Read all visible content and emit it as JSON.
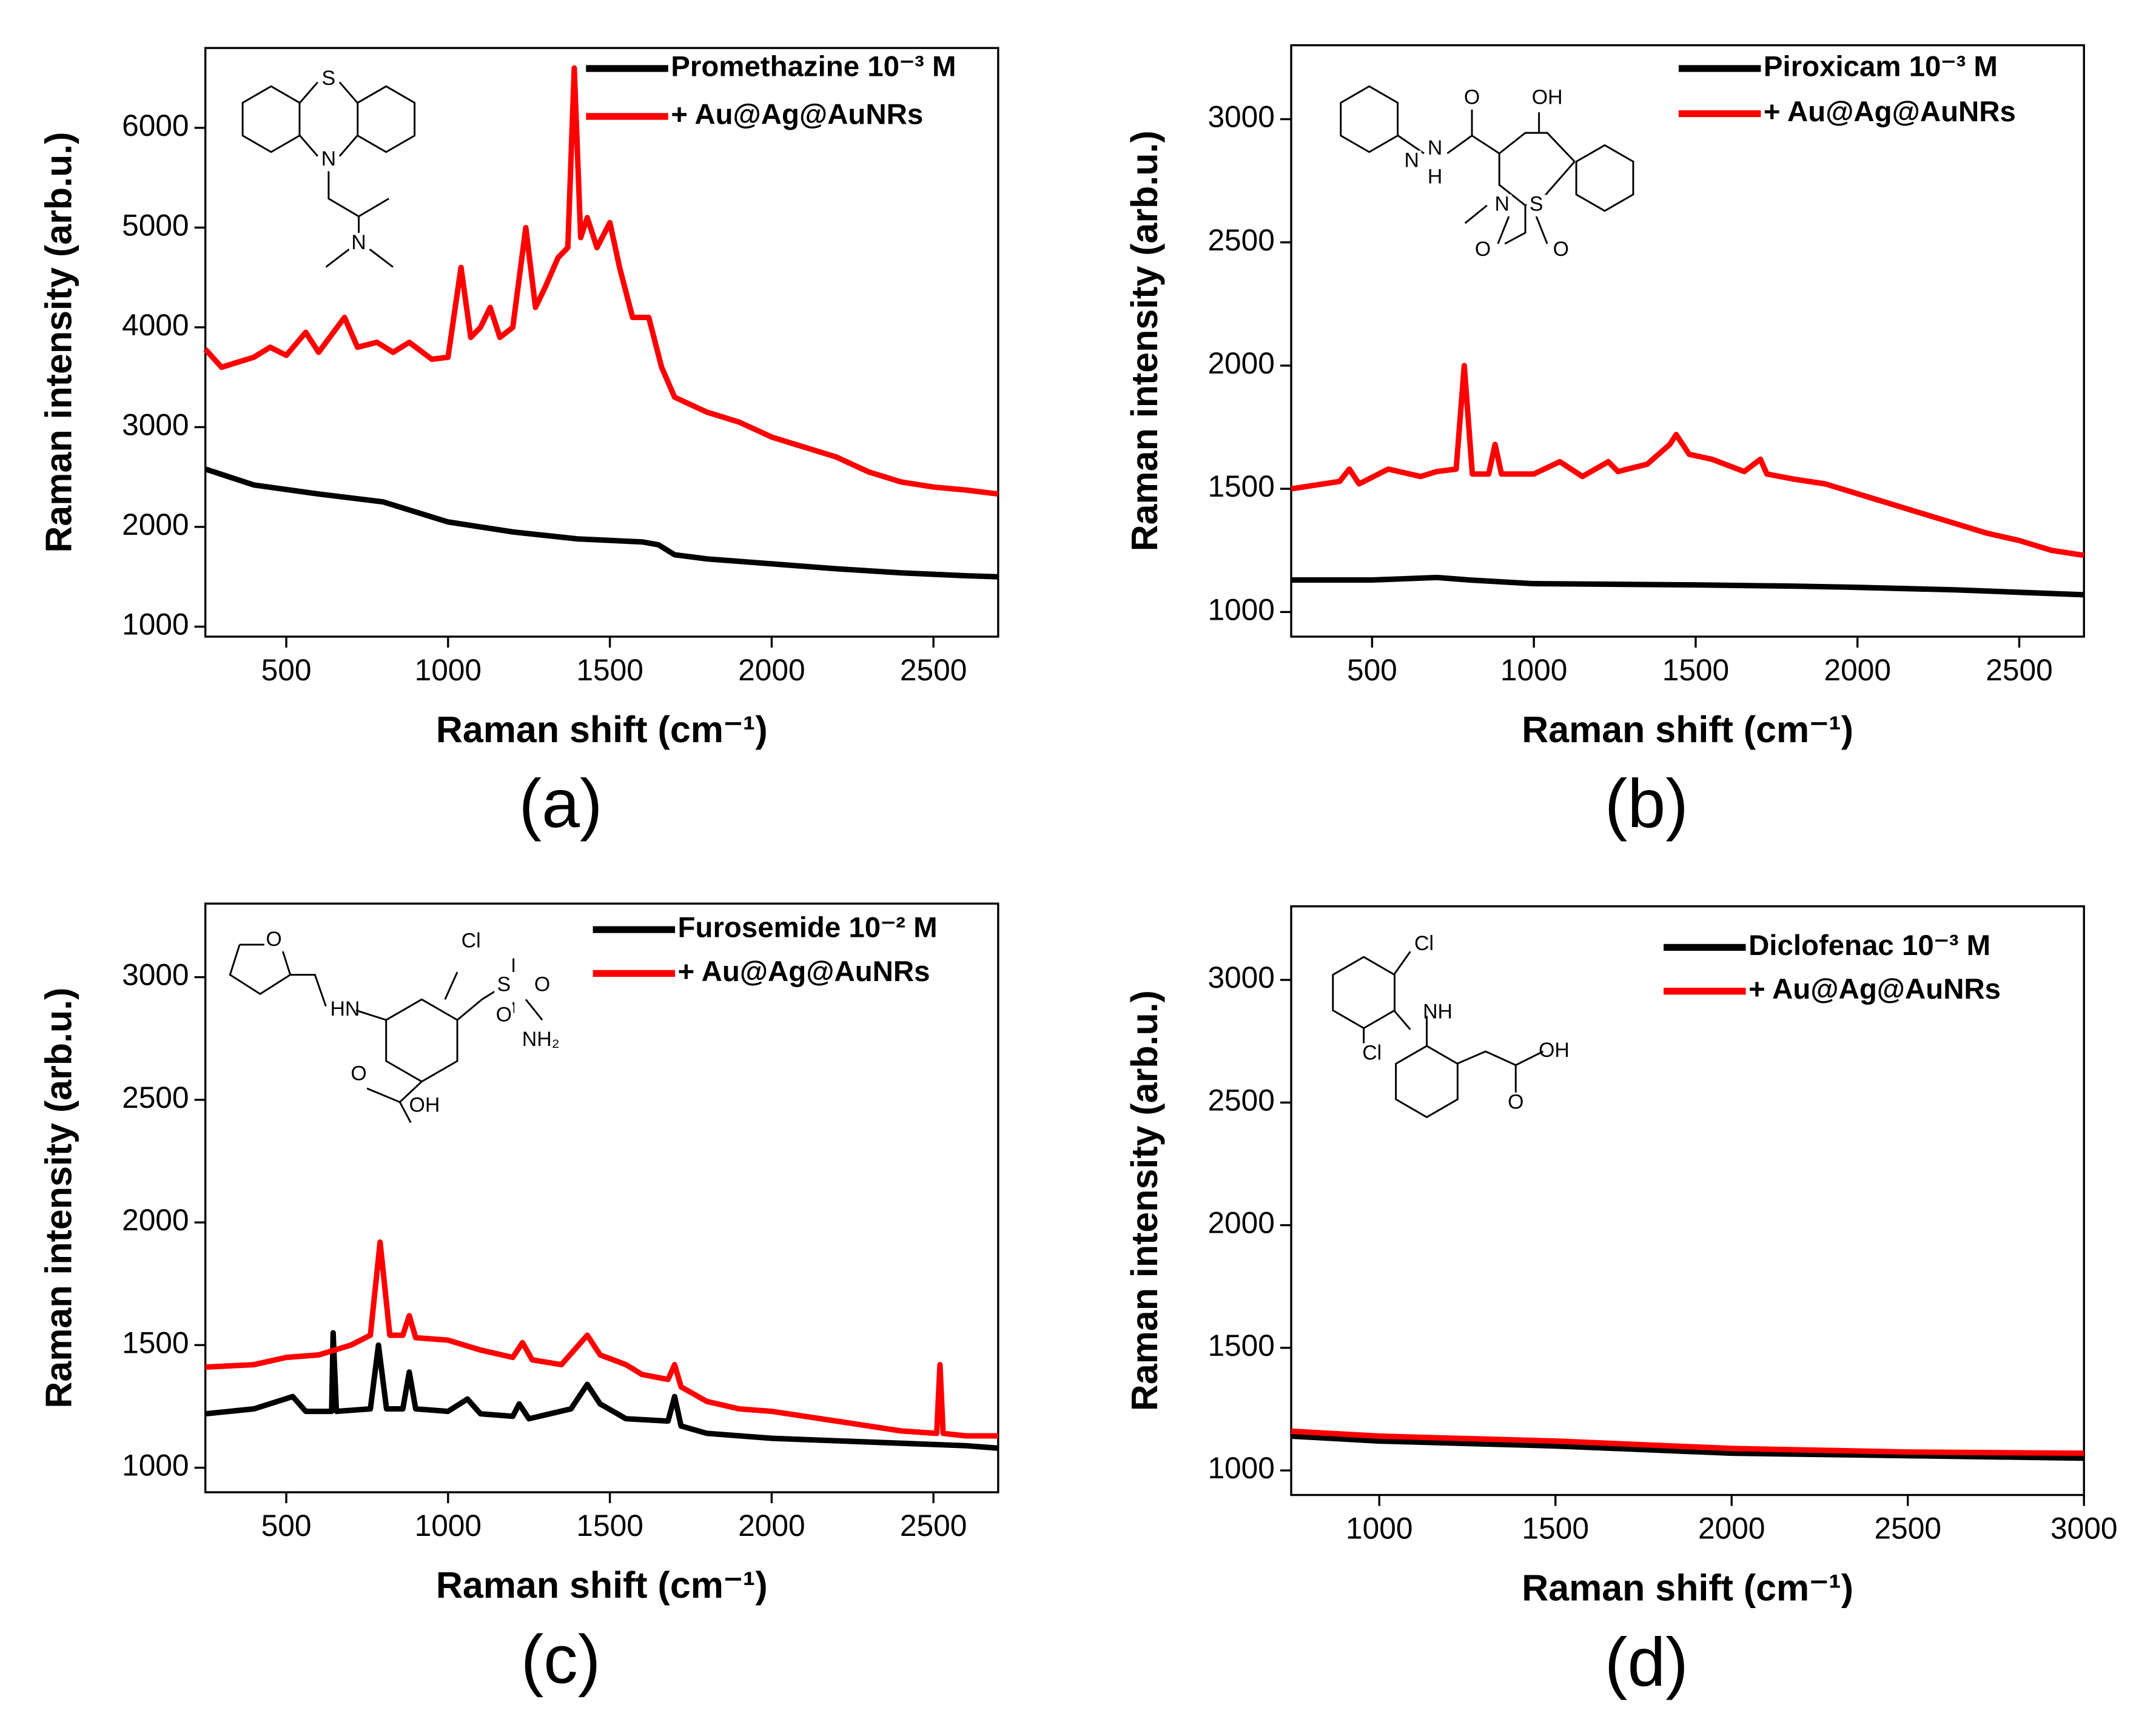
{
  "chart_data": [
    {
      "type": "line",
      "label": "(a)",
      "xlabel": "Raman shift (cm⁻¹)",
      "ylabel": "Raman intensity (arb.u.)",
      "xlim": [
        250,
        2700
      ],
      "ylim": [
        900,
        6800
      ],
      "xticks": [
        500,
        1000,
        1500,
        2000,
        2500
      ],
      "yticks": [
        1000,
        2000,
        3000,
        4000,
        5000,
        6000
      ],
      "legend": "upper right",
      "structure_labels": [
        "S",
        "N",
        "N"
      ],
      "series": [
        {
          "name": "Promethazine 10⁻³ M",
          "color": "#000000",
          "x": [
            250,
            400,
            600,
            800,
            900,
            1000,
            1200,
            1400,
            1600,
            1650,
            1700,
            1800,
            2000,
            2200,
            2400,
            2600,
            2700
          ],
          "values": [
            2580,
            2420,
            2330,
            2250,
            2150,
            2050,
            1950,
            1880,
            1850,
            1820,
            1720,
            1680,
            1630,
            1580,
            1540,
            1510,
            1500
          ]
        },
        {
          "name": "+ Au@Ag@AuNRs",
          "color": "#ff0000",
          "x": [
            250,
            300,
            400,
            450,
            500,
            560,
            600,
            680,
            720,
            780,
            830,
            880,
            950,
            1000,
            1040,
            1070,
            1100,
            1130,
            1160,
            1200,
            1240,
            1270,
            1300,
            1340,
            1370,
            1390,
            1410,
            1430,
            1460,
            1500,
            1530,
            1570,
            1620,
            1660,
            1700,
            1800,
            1900,
            2000,
            2100,
            2200,
            2300,
            2400,
            2500,
            2600,
            2700
          ],
          "values": [
            3780,
            3600,
            3700,
            3800,
            3720,
            3950,
            3750,
            4100,
            3800,
            3850,
            3750,
            3850,
            3680,
            3700,
            4600,
            3900,
            4000,
            4200,
            3900,
            4000,
            5000,
            4200,
            4400,
            4700,
            4800,
            6600,
            4900,
            5100,
            4800,
            5050,
            4600,
            4100,
            4100,
            3600,
            3300,
            3150,
            3050,
            2900,
            2800,
            2700,
            2550,
            2450,
            2400,
            2370,
            2330
          ]
        }
      ]
    },
    {
      "type": "line",
      "label": "(b)",
      "xlabel": "Raman shift (cm⁻¹)",
      "ylabel": "Raman intensity (arb.u.)",
      "xlim": [
        250,
        2700
      ],
      "ylim": [
        900,
        3300
      ],
      "xticks": [
        500,
        1000,
        1500,
        2000,
        2500
      ],
      "yticks": [
        1000,
        1500,
        2000,
        2500,
        3000
      ],
      "legend": "upper right",
      "structure_labels": [
        "N",
        "N",
        "H",
        "O",
        "OH",
        "N",
        "S",
        "O",
        "O"
      ],
      "series": [
        {
          "name": "Piroxicam 10⁻³ M",
          "color": "#000000",
          "x": [
            250,
            500,
            700,
            800,
            1000,
            1500,
            1800,
            2000,
            2300,
            2500,
            2700
          ],
          "values": [
            1130,
            1130,
            1140,
            1130,
            1115,
            1110,
            1105,
            1100,
            1090,
            1080,
            1070
          ]
        },
        {
          "name": "+ Au@Ag@AuNRs",
          "color": "#ff0000",
          "x": [
            250,
            400,
            430,
            460,
            550,
            650,
            700,
            760,
            785,
            810,
            860,
            880,
            900,
            1000,
            1080,
            1150,
            1230,
            1260,
            1350,
            1420,
            1440,
            1480,
            1550,
            1650,
            1700,
            1720,
            1800,
            1900,
            2000,
            2100,
            2200,
            2300,
            2400,
            2500,
            2600,
            2700
          ],
          "values": [
            1500,
            1530,
            1580,
            1520,
            1580,
            1550,
            1570,
            1580,
            2000,
            1560,
            1560,
            1680,
            1560,
            1560,
            1610,
            1550,
            1610,
            1570,
            1600,
            1680,
            1720,
            1640,
            1620,
            1570,
            1620,
            1560,
            1540,
            1520,
            1480,
            1440,
            1400,
            1360,
            1320,
            1290,
            1250,
            1230
          ]
        }
      ]
    },
    {
      "type": "line",
      "label": "(c)",
      "xlabel": "Raman shift (cm⁻¹)",
      "ylabel": "Raman intensity (arb.u.)",
      "xlim": [
        250,
        2700
      ],
      "ylim": [
        900,
        3300
      ],
      "xticks": [
        500,
        1000,
        1500,
        2000,
        2500
      ],
      "yticks": [
        1000,
        1500,
        2000,
        2500,
        3000
      ],
      "legend": "upper right",
      "structure_labels": [
        "O",
        "HN",
        "Cl",
        "S",
        "O",
        "O",
        "NH₂",
        "O",
        "OH"
      ],
      "series": [
        {
          "name": "Furosemide 10⁻² M",
          "color": "#000000",
          "x": [
            250,
            400,
            520,
            560,
            640,
            645,
            655,
            760,
            785,
            810,
            860,
            880,
            900,
            1000,
            1060,
            1100,
            1200,
            1220,
            1250,
            1380,
            1430,
            1470,
            1550,
            1680,
            1700,
            1720,
            1800,
            2000,
            2200,
            2400,
            2600,
            2700
          ],
          "values": [
            1220,
            1240,
            1290,
            1230,
            1230,
            1550,
            1230,
            1240,
            1500,
            1240,
            1240,
            1390,
            1240,
            1230,
            1280,
            1220,
            1210,
            1260,
            1200,
            1240,
            1340,
            1260,
            1200,
            1190,
            1290,
            1170,
            1140,
            1120,
            1110,
            1100,
            1090,
            1080
          ]
        },
        {
          "name": "+ Au@Ag@AuNRs",
          "color": "#ff0000",
          "x": [
            250,
            400,
            500,
            600,
            700,
            760,
            790,
            820,
            860,
            880,
            900,
            1000,
            1100,
            1200,
            1230,
            1260,
            1350,
            1430,
            1470,
            1550,
            1600,
            1680,
            1700,
            1720,
            1800,
            1900,
            2000,
            2200,
            2400,
            2510,
            2520,
            2530,
            2600,
            2700
          ],
          "values": [
            1410,
            1420,
            1450,
            1460,
            1500,
            1540,
            1920,
            1540,
            1540,
            1620,
            1530,
            1520,
            1480,
            1450,
            1510,
            1440,
            1420,
            1540,
            1460,
            1420,
            1380,
            1360,
            1420,
            1330,
            1270,
            1240,
            1230,
            1190,
            1150,
            1140,
            1420,
            1140,
            1130,
            1130
          ]
        }
      ]
    },
    {
      "type": "line",
      "label": "(d)",
      "xlabel": "Raman shift (cm⁻¹)",
      "ylabel": "Raman intensity (arb.u.)",
      "xlim": [
        750,
        3000
      ],
      "ylim": [
        900,
        3300
      ],
      "xticks": [
        1000,
        1500,
        2000,
        2500,
        3000
      ],
      "yticks": [
        1000,
        1500,
        2000,
        2500,
        3000
      ],
      "legend": "upper right",
      "structure_labels": [
        "Cl",
        "NH",
        "Cl",
        "OH",
        "O"
      ],
      "series": [
        {
          "name": "Diclofenac 10⁻³ M",
          "color": "#000000",
          "x": [
            750,
            1000,
            1500,
            2000,
            2500,
            3000
          ],
          "values": [
            1140,
            1120,
            1100,
            1070,
            1060,
            1050
          ]
        },
        {
          "name": "+ Au@Ag@AuNRs",
          "color": "#ff0000",
          "x": [
            750,
            1000,
            1500,
            2000,
            2500,
            3000
          ],
          "values": [
            1160,
            1140,
            1120,
            1090,
            1075,
            1070
          ]
        }
      ]
    }
  ]
}
